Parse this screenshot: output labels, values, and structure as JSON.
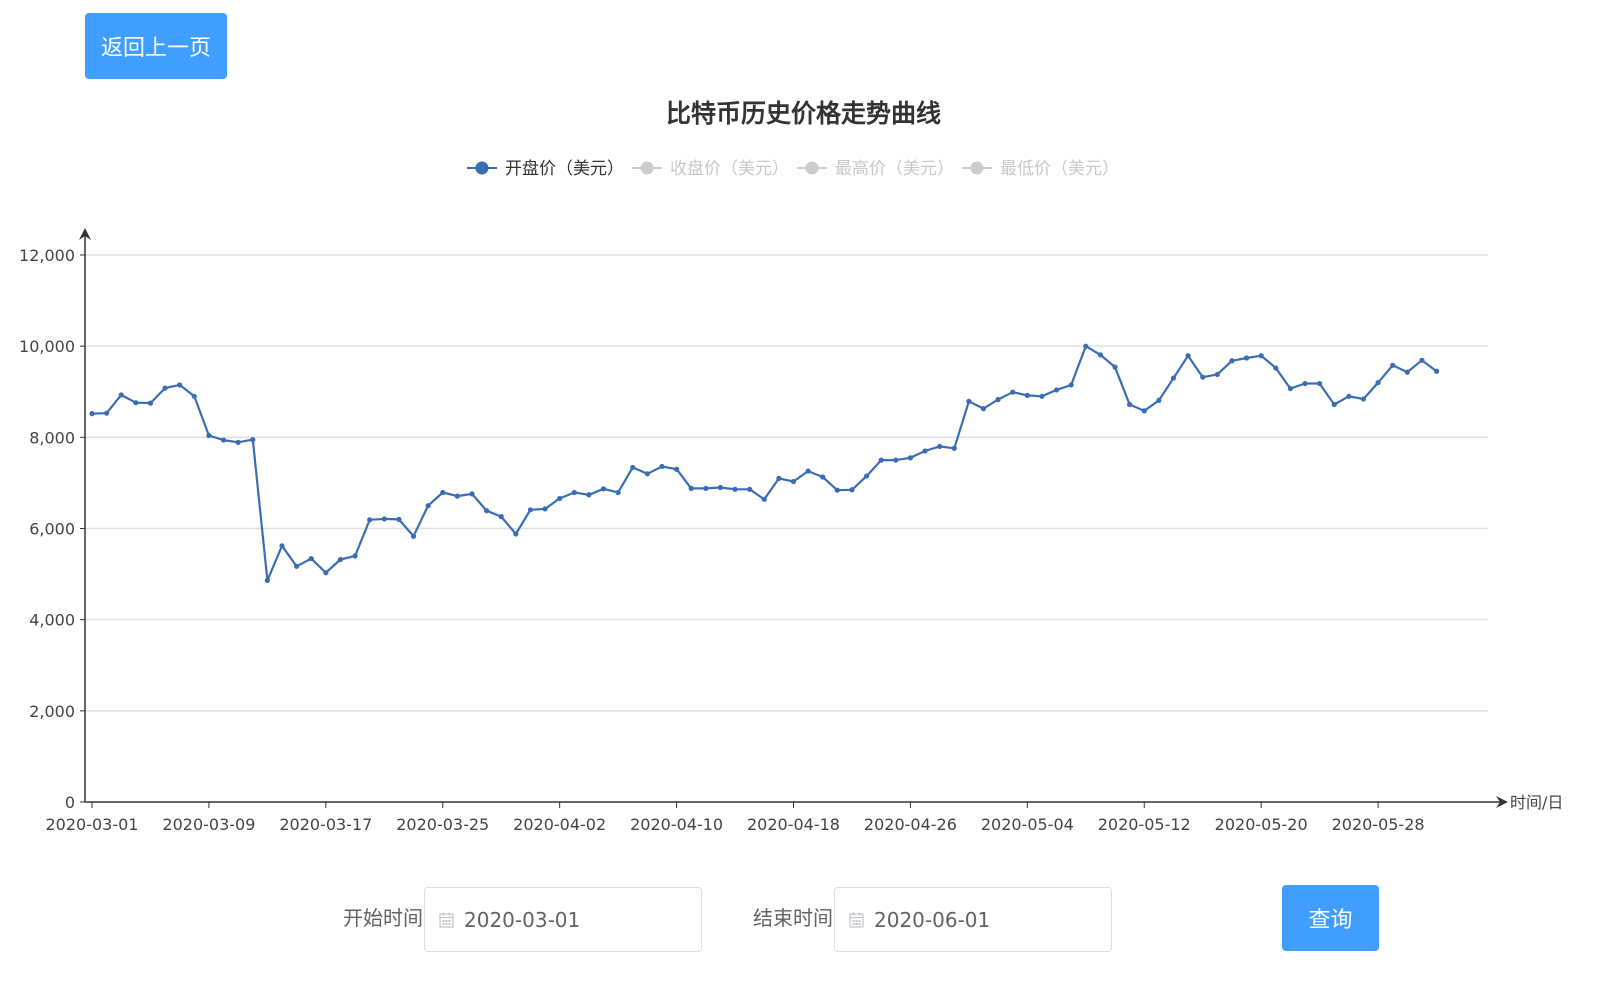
{
  "back_button": {
    "label": "返回上一页"
  },
  "query_form": {
    "start_label": "开始时间:",
    "start_value": "2020-03-01",
    "end_label": "结束时间:",
    "end_value": "2020-06-01",
    "query_label": "查询"
  },
  "colors": {
    "accent": "#409eff",
    "series_active": "#3b6db5",
    "series_inactive": "#cccccc",
    "grid": "#e0e0e0",
    "axis": "#333333"
  },
  "chart_data": {
    "type": "line",
    "title": "比特币历史价格走势曲线",
    "xlabel": "时间/日",
    "ylabel": "",
    "ylim": [
      0,
      12000
    ],
    "yticks": [
      "0",
      "2,000",
      "4,000",
      "6,000",
      "8,000",
      "10,000",
      "12,000"
    ],
    "xticks": [
      "2020-03-01",
      "2020-03-09",
      "2020-03-17",
      "2020-03-25",
      "2020-04-02",
      "2020-04-10",
      "2020-04-18",
      "2020-04-26",
      "2020-05-04",
      "2020-05-12",
      "2020-05-20",
      "2020-05-28"
    ],
    "grid": true,
    "legend_position": "top-center",
    "legend": [
      {
        "name": "开盘价（美元）",
        "active": true
      },
      {
        "name": "收盘价（美元）",
        "active": false
      },
      {
        "name": "最高价（美元）",
        "active": false
      },
      {
        "name": "最低价（美元）",
        "active": false
      }
    ],
    "x_start": "2020-03-01",
    "series": [
      {
        "name": "开盘价（美元）",
        "values": [
          8520,
          8530,
          8930,
          8760,
          8750,
          9080,
          9150,
          8900,
          8040,
          7940,
          7890,
          7950,
          4860,
          5620,
          5170,
          5340,
          5030,
          5320,
          5400,
          6190,
          6210,
          6200,
          5830,
          6500,
          6790,
          6710,
          6760,
          6390,
          6260,
          5880,
          6410,
          6430,
          6660,
          6790,
          6740,
          6870,
          6790,
          7340,
          7200,
          7360,
          7300,
          6880,
          6880,
          6900,
          6860,
          6860,
          6640,
          7100,
          7030,
          7260,
          7130,
          6840,
          6850,
          7150,
          7500,
          7500,
          7550,
          7700,
          7800,
          7760,
          8790,
          8630,
          8830,
          8990,
          8920,
          8900,
          9040,
          9150,
          10000,
          9810,
          9540,
          8720,
          8580,
          8810,
          9300,
          9790,
          9320,
          9380,
          9680,
          9740,
          9790,
          9520,
          9070,
          9180,
          9180,
          8720,
          8900,
          8840,
          9200,
          9580,
          9430,
          9690,
          9450
        ]
      }
    ]
  }
}
